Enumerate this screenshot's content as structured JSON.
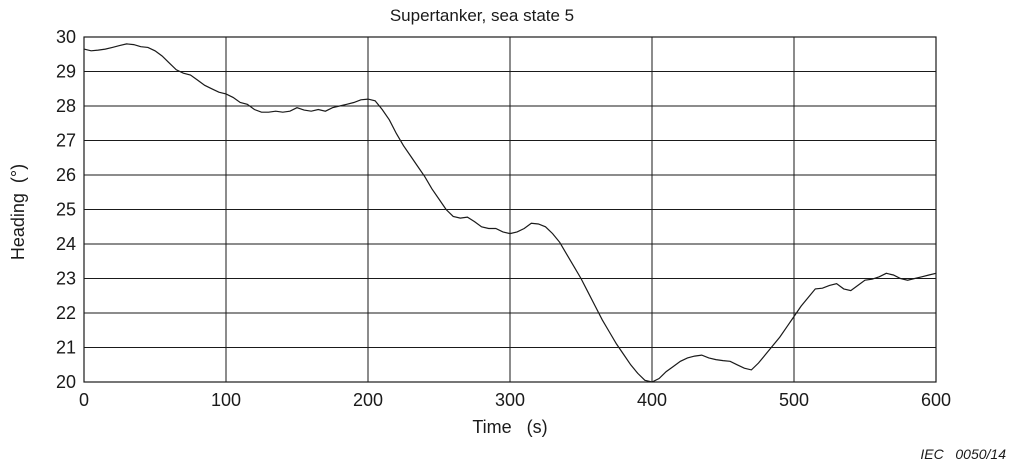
{
  "chart_data": {
    "type": "line",
    "title": "Supertanker, sea state 5",
    "xlabel": "Time   (s)",
    "ylabel": "Heading  (°)",
    "xlim": [
      0,
      600
    ],
    "ylim": [
      20,
      30
    ],
    "xticks": [
      0,
      100,
      200,
      300,
      400,
      500,
      600
    ],
    "yticks": [
      20,
      21,
      22,
      23,
      24,
      25,
      26,
      27,
      28,
      29,
      30
    ],
    "grid": true,
    "series": [
      {
        "x": [
          0,
          5,
          10,
          15,
          20,
          25,
          30,
          35,
          40,
          45,
          50,
          55,
          60,
          65,
          70,
          75,
          80,
          85,
          90,
          95,
          100,
          105,
          110,
          115,
          120,
          125,
          130,
          135,
          140,
          145,
          150,
          155,
          160,
          165,
          170,
          175,
          180,
          185,
          190,
          195,
          200,
          205,
          210,
          215,
          220,
          225,
          230,
          235,
          240,
          245,
          250,
          255,
          260,
          265,
          270,
          275,
          280,
          285,
          290,
          295,
          300,
          305,
          310,
          315,
          320,
          325,
          330,
          335,
          340,
          345,
          350,
          355,
          360,
          365,
          370,
          375,
          380,
          385,
          390,
          395,
          400,
          405,
          410,
          415,
          420,
          425,
          430,
          435,
          440,
          445,
          450,
          455,
          460,
          465,
          470,
          475,
          480,
          485,
          490,
          495,
          500,
          505,
          510,
          515,
          520,
          525,
          530,
          535,
          540,
          545,
          550,
          555,
          560,
          565,
          570,
          575,
          580,
          585,
          590,
          595,
          600
        ],
        "y": [
          29.65,
          29.6,
          29.62,
          29.65,
          29.7,
          29.75,
          29.8,
          29.78,
          29.72,
          29.7,
          29.6,
          29.45,
          29.25,
          29.05,
          28.95,
          28.9,
          28.75,
          28.6,
          28.5,
          28.4,
          28.35,
          28.25,
          28.1,
          28.05,
          27.9,
          27.82,
          27.82,
          27.85,
          27.82,
          27.85,
          27.95,
          27.88,
          27.85,
          27.9,
          27.85,
          27.95,
          28.0,
          28.05,
          28.1,
          28.18,
          28.2,
          28.15,
          27.9,
          27.6,
          27.2,
          26.85,
          26.55,
          26.25,
          25.95,
          25.6,
          25.3,
          25.0,
          24.8,
          24.75,
          24.78,
          24.65,
          24.5,
          24.45,
          24.45,
          24.35,
          24.3,
          24.35,
          24.45,
          24.6,
          24.58,
          24.5,
          24.3,
          24.05,
          23.7,
          23.35,
          23.0,
          22.6,
          22.2,
          21.8,
          21.45,
          21.1,
          20.8,
          20.5,
          20.25,
          20.05,
          19.98,
          20.1,
          20.3,
          20.45,
          20.6,
          20.7,
          20.75,
          20.78,
          20.7,
          20.65,
          20.62,
          20.6,
          20.5,
          20.4,
          20.35,
          20.55,
          20.8,
          21.05,
          21.3,
          21.6,
          21.9,
          22.2,
          22.45,
          22.7,
          22.72,
          22.8,
          22.85,
          22.7,
          22.65,
          22.8,
          22.95,
          22.98,
          23.05,
          23.15,
          23.1,
          23.0,
          22.95,
          23.0,
          23.05,
          23.1,
          23.15
        ]
      }
    ],
    "line_color": "#1a1a1a",
    "grid_color": "#1a1a1a"
  },
  "footnote": "IEC   0050/14"
}
